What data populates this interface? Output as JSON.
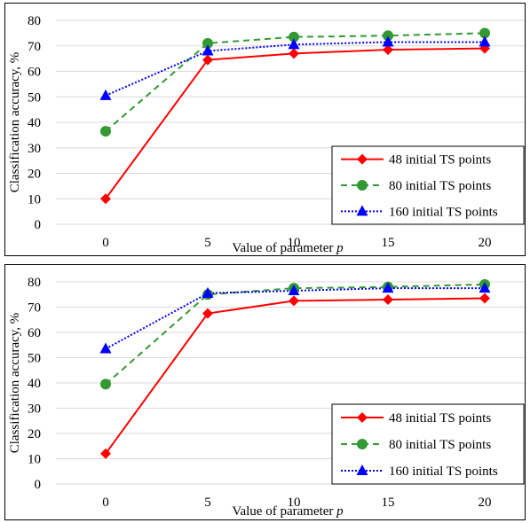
{
  "chart_data": [
    {
      "type": "line",
      "title": "",
      "xlabel": "Value of parameter",
      "xlabel_var": "p",
      "ylabel": "Classification accuracy, %",
      "x": [
        0,
        5,
        10,
        15,
        20
      ],
      "x_ticks": [
        "0",
        "5",
        "10",
        "15",
        "20"
      ],
      "ylim": [
        0,
        80
      ],
      "y_ticks": [
        "0",
        "10",
        "20",
        "30",
        "40",
        "50",
        "60",
        "70",
        "80"
      ],
      "grid": "horizontal",
      "legend_position": "bottom-right",
      "series": [
        {
          "name": "48 initial TS points",
          "values": [
            10,
            64.5,
            67,
            68.5,
            69
          ],
          "color": "#ff0000",
          "marker": "diamond",
          "dash": "solid"
        },
        {
          "name": "80 initial TS points",
          "values": [
            36.5,
            71,
            73.5,
            74,
            75
          ],
          "color": "#339933",
          "marker": "circle",
          "dash": "dashed"
        },
        {
          "name": "160 initial TS points",
          "values": [
            50.5,
            68,
            70.5,
            71.5,
            71.5
          ],
          "color": "#0000ff",
          "marker": "triangle",
          "dash": "dotted"
        }
      ]
    },
    {
      "type": "line",
      "title": "",
      "xlabel": "Value of parameter",
      "xlabel_var": "p",
      "ylabel": "Classification accuracy, %",
      "x": [
        0,
        5,
        10,
        15,
        20
      ],
      "x_ticks": [
        "0",
        "5",
        "10",
        "15",
        "20"
      ],
      "ylim": [
        0,
        80
      ],
      "y_ticks": [
        "0",
        "10",
        "20",
        "30",
        "40",
        "50",
        "60",
        "70",
        "80"
      ],
      "grid": "horizontal",
      "legend_position": "bottom-right",
      "series": [
        {
          "name": "48 initial TS points",
          "values": [
            12,
            67.5,
            72.5,
            73,
            73.5
          ],
          "color": "#ff0000",
          "marker": "diamond",
          "dash": "solid"
        },
        {
          "name": "80 initial TS points",
          "values": [
            39.5,
            75,
            77.5,
            78,
            79
          ],
          "color": "#339933",
          "marker": "circle",
          "dash": "dashed"
        },
        {
          "name": "160 initial TS points",
          "values": [
            53.5,
            75.5,
            76.5,
            77.5,
            77.5
          ],
          "color": "#0000ff",
          "marker": "triangle",
          "dash": "dotted"
        }
      ]
    }
  ]
}
